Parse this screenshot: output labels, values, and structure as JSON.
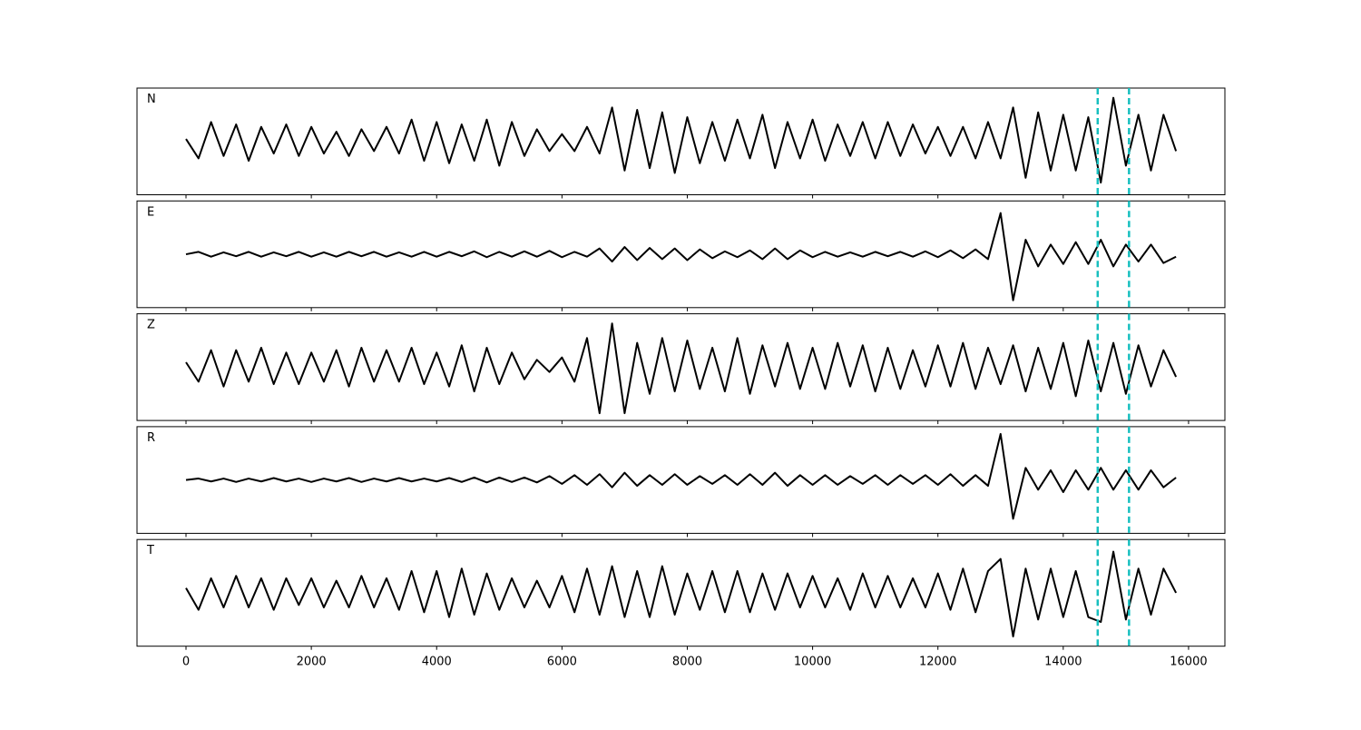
{
  "chart_data": {
    "type": "line",
    "x": [
      0,
      200,
      400,
      600,
      800,
      1000,
      1200,
      1400,
      1600,
      1800,
      2000,
      2200,
      2400,
      2600,
      2800,
      3000,
      3200,
      3400,
      3600,
      3800,
      4000,
      4200,
      4400,
      4600,
      4800,
      5000,
      5200,
      5400,
      5600,
      5800,
      6000,
      6200,
      6400,
      6600,
      6800,
      7000,
      7200,
      7400,
      7600,
      7800,
      8000,
      8200,
      8400,
      8600,
      8800,
      9000,
      9200,
      9400,
      9600,
      9800,
      10000,
      10200,
      10400,
      10600,
      10800,
      11000,
      11200,
      11400,
      11600,
      11800,
      12000,
      12200,
      12400,
      12600,
      12800,
      13000,
      13200,
      13400,
      13600,
      13800,
      14000,
      14200,
      14400,
      14600,
      14800,
      15000,
      15200,
      15400,
      15600,
      15800
    ],
    "series": [
      {
        "name": "N",
        "color": "#000000",
        "values": [
          0.05,
          -0.35,
          0.4,
          -0.3,
          0.35,
          -0.4,
          0.3,
          -0.25,
          0.35,
          -0.3,
          0.3,
          -0.25,
          0.2,
          -0.3,
          0.25,
          -0.2,
          0.3,
          -0.25,
          0.45,
          -0.4,
          0.4,
          -0.45,
          0.35,
          -0.4,
          0.45,
          -0.5,
          0.4,
          -0.3,
          0.25,
          -0.2,
          0.15,
          -0.2,
          0.3,
          -0.25,
          0.7,
          -0.6,
          0.65,
          -0.55,
          0.6,
          -0.65,
          0.5,
          -0.45,
          0.4,
          -0.4,
          0.45,
          -0.35,
          0.55,
          -0.55,
          0.4,
          -0.35,
          0.45,
          -0.4,
          0.35,
          -0.3,
          0.4,
          -0.35,
          0.4,
          -0.3,
          0.35,
          -0.25,
          0.3,
          -0.3,
          0.3,
          -0.35,
          0.4,
          -0.35,
          0.7,
          -0.75,
          0.6,
          -0.6,
          0.55,
          -0.6,
          0.5,
          -0.85,
          0.9,
          -0.5,
          0.55,
          -0.6,
          0.55,
          -0.2
        ]
      },
      {
        "name": "E",
        "color": "#000000",
        "values": [
          0,
          0.05,
          -0.05,
          0.04,
          -0.04,
          0.05,
          -0.05,
          0.04,
          -0.04,
          0.05,
          -0.05,
          0.04,
          -0.05,
          0.05,
          -0.04,
          0.05,
          -0.05,
          0.04,
          -0.05,
          0.05,
          -0.05,
          0.05,
          -0.04,
          0.06,
          -0.06,
          0.05,
          -0.05,
          0.06,
          -0.05,
          0.07,
          -0.06,
          0.05,
          -0.05,
          0.12,
          -0.15,
          0.15,
          -0.12,
          0.13,
          -0.1,
          0.12,
          -0.12,
          0.1,
          -0.08,
          0.06,
          -0.06,
          0.08,
          -0.1,
          0.12,
          -0.1,
          0.08,
          -0.06,
          0.05,
          -0.05,
          0.04,
          -0.05,
          0.05,
          -0.04,
          0.05,
          -0.05,
          0.06,
          -0.06,
          0.08,
          -0.08,
          0.1,
          -0.1,
          0.85,
          -0.95,
          0.3,
          -0.25,
          0.2,
          -0.2,
          0.25,
          -0.2,
          0.3,
          -0.25,
          0.2,
          -0.15,
          0.2,
          -0.18,
          -0.05
        ]
      },
      {
        "name": "Z",
        "color": "#000000",
        "values": [
          0.1,
          -0.3,
          0.35,
          -0.4,
          0.35,
          -0.3,
          0.4,
          -0.35,
          0.3,
          -0.35,
          0.3,
          -0.3,
          0.35,
          -0.4,
          0.4,
          -0.3,
          0.35,
          -0.3,
          0.4,
          -0.35,
          0.3,
          -0.4,
          0.45,
          -0.5,
          0.4,
          -0.35,
          0.3,
          -0.25,
          0.15,
          -0.1,
          0.2,
          -0.3,
          0.6,
          -0.95,
          0.9,
          -0.95,
          0.5,
          -0.55,
          0.6,
          -0.5,
          0.55,
          -0.45,
          0.4,
          -0.5,
          0.6,
          -0.55,
          0.45,
          -0.4,
          0.5,
          -0.45,
          0.4,
          -0.45,
          0.5,
          -0.4,
          0.45,
          -0.5,
          0.4,
          -0.45,
          0.35,
          -0.4,
          0.45,
          -0.4,
          0.5,
          -0.45,
          0.4,
          -0.35,
          0.45,
          -0.5,
          0.4,
          -0.45,
          0.5,
          -0.6,
          0.55,
          -0.5,
          0.5,
          -0.55,
          0.45,
          -0.4,
          0.35,
          -0.2
        ]
      },
      {
        "name": "R",
        "color": "#000000",
        "values": [
          0,
          0.03,
          -0.03,
          0.03,
          -0.04,
          0.03,
          -0.03,
          0.04,
          -0.03,
          0.03,
          -0.04,
          0.03,
          -0.03,
          0.04,
          -0.04,
          0.03,
          -0.03,
          0.04,
          -0.03,
          0.03,
          -0.03,
          0.04,
          -0.04,
          0.05,
          -0.05,
          0.05,
          -0.04,
          0.05,
          -0.05,
          0.08,
          -0.08,
          0.1,
          -0.1,
          0.12,
          -0.15,
          0.15,
          -0.12,
          0.1,
          -0.1,
          0.12,
          -0.1,
          0.08,
          -0.08,
          0.1,
          -0.1,
          0.12,
          -0.1,
          0.15,
          -0.12,
          0.1,
          -0.1,
          0.1,
          -0.1,
          0.08,
          -0.08,
          0.1,
          -0.1,
          0.1,
          -0.08,
          0.1,
          -0.1,
          0.12,
          -0.12,
          0.1,
          -0.12,
          0.95,
          -0.8,
          0.25,
          -0.2,
          0.2,
          -0.25,
          0.2,
          -0.2,
          0.25,
          -0.2,
          0.2,
          -0.2,
          0.2,
          -0.15,
          0.05
        ]
      },
      {
        "name": "T",
        "color": "#000000",
        "values": [
          0.1,
          -0.35,
          0.3,
          -0.3,
          0.35,
          -0.3,
          0.3,
          -0.35,
          0.3,
          -0.25,
          0.3,
          -0.3,
          0.25,
          -0.3,
          0.35,
          -0.3,
          0.3,
          -0.35,
          0.45,
          -0.4,
          0.45,
          -0.5,
          0.5,
          -0.45,
          0.4,
          -0.35,
          0.3,
          -0.3,
          0.25,
          -0.3,
          0.35,
          -0.4,
          0.5,
          -0.45,
          0.55,
          -0.5,
          0.45,
          -0.5,
          0.55,
          -0.45,
          0.4,
          -0.35,
          0.45,
          -0.4,
          0.45,
          -0.4,
          0.4,
          -0.35,
          0.4,
          -0.3,
          0.35,
          -0.3,
          0.3,
          -0.35,
          0.4,
          -0.3,
          0.35,
          -0.3,
          0.3,
          -0.3,
          0.4,
          -0.35,
          0.5,
          -0.4,
          0.45,
          0.7,
          -0.9,
          0.5,
          -0.55,
          0.5,
          -0.5,
          0.45,
          -0.5,
          -0.6,
          0.85,
          -0.55,
          0.5,
          -0.45,
          0.5,
          0.0
        ]
      }
    ],
    "xlim": [
      -782,
      16580
    ],
    "xticks": [
      0,
      2000,
      4000,
      6000,
      8000,
      10000,
      12000,
      14000,
      16000
    ],
    "ylim": [
      -1.1,
      1.1
    ],
    "vlines": [
      14550,
      15050
    ],
    "vline_color": "#17bfbf"
  }
}
